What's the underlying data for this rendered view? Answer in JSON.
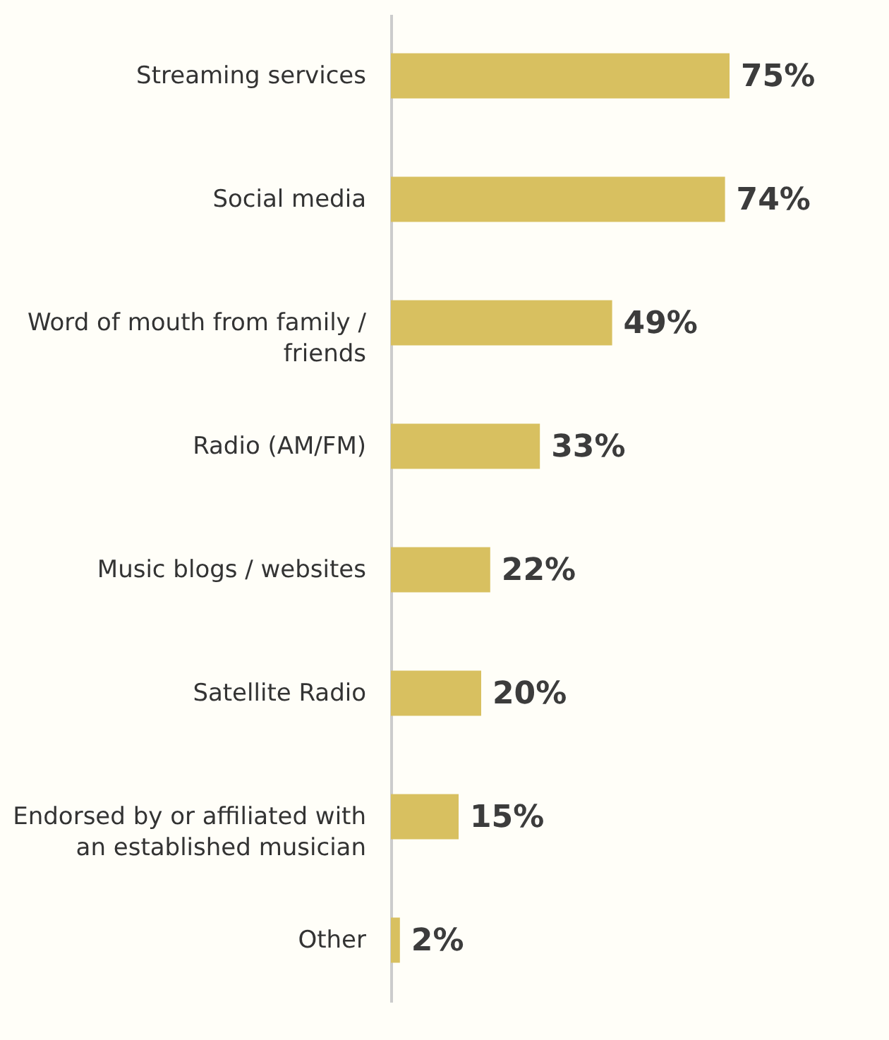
{
  "chart_data": {
    "type": "bar",
    "orientation": "horizontal",
    "categories": [
      "Streaming services",
      "Social media",
      "Word of mouth from family / friends",
      "Radio (AM/FM)",
      "Music blogs / websites",
      "Satellite Radio",
      "Endorsed by or affiliated with an established musician",
      "Other"
    ],
    "values": [
      75,
      74,
      49,
      33,
      22,
      20,
      15,
      2
    ],
    "value_labels": [
      "75%",
      "74%",
      "49%",
      "33%",
      "22%",
      "20%",
      "15%",
      "2%"
    ],
    "color": "#d8c060"
  }
}
